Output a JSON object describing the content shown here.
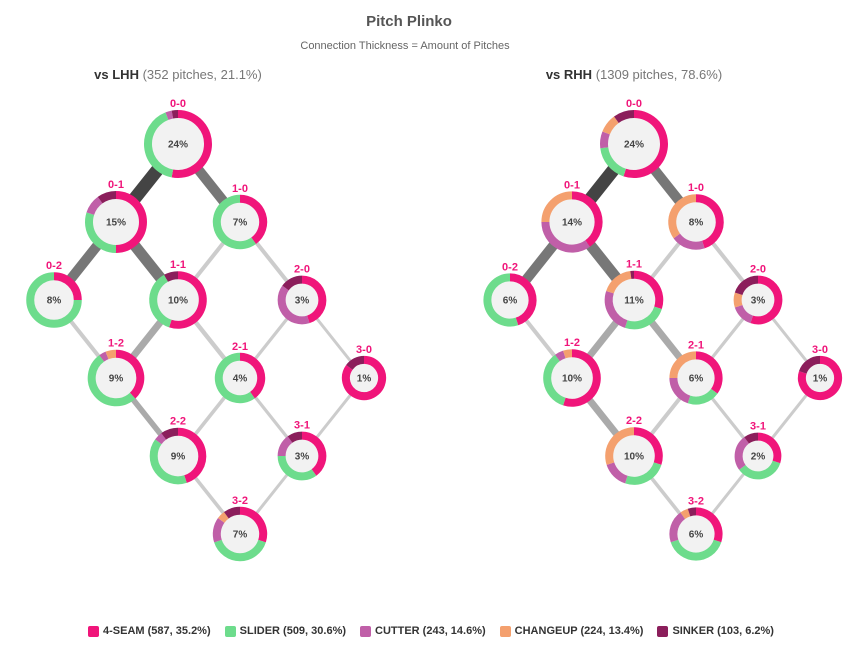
{
  "chart_data": {
    "type": "donut-network",
    "title": "Pitch Plinko",
    "subtitle": "Connection Thickness = Amount of Pitches",
    "colors": {
      "4-SEAM": "#f0157a",
      "SLIDER": "#6ddc8c",
      "CUTTER": "#c05fa8",
      "CHANGEUP": "#f4a06e",
      "SINKER": "#8b1e5b"
    },
    "legend": [
      {
        "key": "4-SEAM",
        "label": "4-SEAM (587, 35.2%)"
      },
      {
        "key": "SLIDER",
        "label": "SLIDER (509, 30.6%)"
      },
      {
        "key": "CUTTER",
        "label": "CUTTER (243, 14.6%)"
      },
      {
        "key": "CHANGEUP",
        "label": "CHANGEUP (224, 13.4%)"
      },
      {
        "key": "SINKER",
        "label": "SINKER (103, 6.2%)"
      }
    ],
    "panels": [
      {
        "title": "vs LHH",
        "detail": "(352 pitches, 21.1%)",
        "nodes": [
          {
            "count": "0-0",
            "pct": "24%",
            "mix": {
              "4-SEAM": 0.53,
              "SLIDER": 0.41,
              "CUTTER": 0.03,
              "SINKER": 0.03
            }
          },
          {
            "count": "0-1",
            "pct": "15%",
            "mix": {
              "4-SEAM": 0.5,
              "SLIDER": 0.3,
              "CUTTER": 0.1,
              "SINKER": 0.1
            }
          },
          {
            "count": "1-0",
            "pct": "7%",
            "mix": {
              "4-SEAM": 0.4,
              "SLIDER": 0.6
            }
          },
          {
            "count": "0-2",
            "pct": "8%",
            "mix": {
              "4-SEAM": 0.25,
              "SLIDER": 0.75
            }
          },
          {
            "count": "1-1",
            "pct": "10%",
            "mix": {
              "4-SEAM": 0.55,
              "SLIDER": 0.37,
              "SINKER": 0.08
            }
          },
          {
            "count": "2-0",
            "pct": "3%",
            "mix": {
              "4-SEAM": 0.45,
              "CUTTER": 0.4,
              "SINKER": 0.15
            }
          },
          {
            "count": "1-2",
            "pct": "9%",
            "mix": {
              "4-SEAM": 0.38,
              "SLIDER": 0.52,
              "CHANGEUP": 0.06,
              "CUTTER": 0.04
            }
          },
          {
            "count": "2-1",
            "pct": "4%",
            "mix": {
              "4-SEAM": 0.4,
              "SLIDER": 0.6
            }
          },
          {
            "count": "3-0",
            "pct": "1%",
            "mix": {
              "4-SEAM": 0.85,
              "SINKER": 0.15
            }
          },
          {
            "count": "2-2",
            "pct": "9%",
            "mix": {
              "4-SEAM": 0.45,
              "SLIDER": 0.4,
              "CUTTER": 0.05,
              "SINKER": 0.1
            }
          },
          {
            "count": "3-1",
            "pct": "3%",
            "mix": {
              "4-SEAM": 0.4,
              "SLIDER": 0.35,
              "CUTTER": 0.15,
              "SINKER": 0.1
            }
          },
          {
            "count": "3-2",
            "pct": "7%",
            "mix": {
              "4-SEAM": 0.3,
              "SLIDER": 0.4,
              "CHANGEUP": 0.05,
              "CUTTER": 0.15,
              "SINKER": 0.1
            }
          }
        ],
        "flows": [
          {
            "from": "0-0",
            "to": "0-1",
            "weight": 0.55
          },
          {
            "from": "0-0",
            "to": "1-0",
            "weight": 0.4
          },
          {
            "from": "0-1",
            "to": "0-2",
            "weight": 0.4
          },
          {
            "from": "0-1",
            "to": "1-1",
            "weight": 0.45
          },
          {
            "from": "1-0",
            "to": "1-1",
            "weight": 0.1
          },
          {
            "from": "1-0",
            "to": "2-0",
            "weight": 0.1
          },
          {
            "from": "0-2",
            "to": "1-2",
            "weight": 0.1
          },
          {
            "from": "1-1",
            "to": "1-2",
            "weight": 0.25
          },
          {
            "from": "1-1",
            "to": "2-1",
            "weight": 0.12
          },
          {
            "from": "2-0",
            "to": "2-1",
            "weight": 0.06
          },
          {
            "from": "2-0",
            "to": "3-0",
            "weight": 0.05
          },
          {
            "from": "1-2",
            "to": "2-2",
            "weight": 0.18
          },
          {
            "from": "2-1",
            "to": "2-2",
            "weight": 0.08
          },
          {
            "from": "2-1",
            "to": "3-1",
            "weight": 0.06
          },
          {
            "from": "3-0",
            "to": "3-1",
            "weight": 0.05
          },
          {
            "from": "2-2",
            "to": "3-2",
            "weight": 0.08
          },
          {
            "from": "3-1",
            "to": "3-2",
            "weight": 0.05
          }
        ]
      },
      {
        "title": "vs RHH",
        "detail": "(1309 pitches, 78.6%)",
        "nodes": [
          {
            "count": "0-0",
            "pct": "24%",
            "mix": {
              "4-SEAM": 0.55,
              "SLIDER": 0.18,
              "SINKER": 0.1,
              "CUTTER": 0.08,
              "CHANGEUP": 0.09
            }
          },
          {
            "count": "0-1",
            "pct": "14%",
            "mix": {
              "4-SEAM": 0.4,
              "CUTTER": 0.35,
              "CHANGEUP": 0.25
            }
          },
          {
            "count": "1-0",
            "pct": "8%",
            "mix": {
              "4-SEAM": 0.45,
              "CHANGEUP": 0.35,
              "CUTTER": 0.2
            }
          },
          {
            "count": "0-2",
            "pct": "6%",
            "mix": {
              "4-SEAM": 0.45,
              "SLIDER": 0.55
            }
          },
          {
            "count": "1-1",
            "pct": "11%",
            "mix": {
              "4-SEAM": 0.3,
              "SLIDER": 0.25,
              "CUTTER": 0.25,
              "CHANGEUP": 0.18,
              "SINKER": 0.02
            }
          },
          {
            "count": "2-0",
            "pct": "3%",
            "mix": {
              "4-SEAM": 0.55,
              "SINKER": 0.2,
              "CUTTER": 0.15,
              "CHANGEUP": 0.1
            }
          },
          {
            "count": "1-2",
            "pct": "10%",
            "mix": {
              "4-SEAM": 0.55,
              "SLIDER": 0.35,
              "CHANGEUP": 0.05,
              "CUTTER": 0.05
            }
          },
          {
            "count": "2-1",
            "pct": "6%",
            "mix": {
              "4-SEAM": 0.35,
              "SLIDER": 0.2,
              "CHANGEUP": 0.25,
              "CUTTER": 0.2
            }
          },
          {
            "count": "3-0",
            "pct": "1%",
            "mix": {
              "4-SEAM": 0.8,
              "SINKER": 0.2
            }
          },
          {
            "count": "2-2",
            "pct": "10%",
            "mix": {
              "4-SEAM": 0.3,
              "SLIDER": 0.25,
              "CUTTER": 0.15,
              "CHANGEUP": 0.3
            }
          },
          {
            "count": "3-1",
            "pct": "2%",
            "mix": {
              "4-SEAM": 0.3,
              "SLIDER": 0.35,
              "CUTTER": 0.25,
              "SINKER": 0.1
            }
          },
          {
            "count": "3-2",
            "pct": "6%",
            "mix": {
              "4-SEAM": 0.3,
              "SLIDER": 0.4,
              "CUTTER": 0.2,
              "SINKER": 0.05,
              "CHANGEUP": 0.05
            }
          }
        ],
        "flows": [
          {
            "from": "0-0",
            "to": "0-1",
            "weight": 0.55
          },
          {
            "from": "0-0",
            "to": "1-0",
            "weight": 0.4
          },
          {
            "from": "0-1",
            "to": "0-2",
            "weight": 0.4
          },
          {
            "from": "0-1",
            "to": "1-1",
            "weight": 0.45
          },
          {
            "from": "1-0",
            "to": "1-1",
            "weight": 0.1
          },
          {
            "from": "1-0",
            "to": "2-0",
            "weight": 0.1
          },
          {
            "from": "0-2",
            "to": "1-2",
            "weight": 0.1
          },
          {
            "from": "1-1",
            "to": "1-2",
            "weight": 0.25
          },
          {
            "from": "1-1",
            "to": "2-1",
            "weight": 0.25
          },
          {
            "from": "2-0",
            "to": "2-1",
            "weight": 0.06
          },
          {
            "from": "2-0",
            "to": "3-0",
            "weight": 0.05
          },
          {
            "from": "1-2",
            "to": "2-2",
            "weight": 0.25
          },
          {
            "from": "2-1",
            "to": "2-2",
            "weight": 0.1
          },
          {
            "from": "2-1",
            "to": "3-1",
            "weight": 0.06
          },
          {
            "from": "3-0",
            "to": "3-1",
            "weight": 0.05
          },
          {
            "from": "2-2",
            "to": "3-2",
            "weight": 0.08
          },
          {
            "from": "3-1",
            "to": "3-2",
            "weight": 0.05
          }
        ]
      }
    ]
  }
}
